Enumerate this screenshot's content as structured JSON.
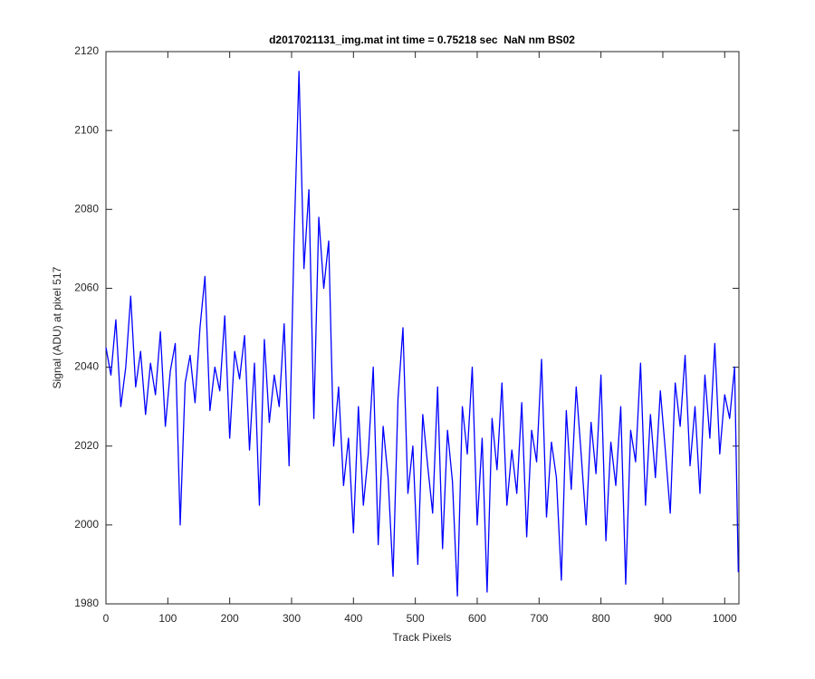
{
  "chart_data": {
    "type": "line",
    "title": "d2017021131_img.mat int time = 0.75218 sec  NaN nm BS02",
    "xlabel": "Track Pixels",
    "ylabel": "Signal (ADU) at pixel 517",
    "color": "#0000ff",
    "xlim": [
      0,
      1023
    ],
    "ylim": [
      1980,
      2120
    ],
    "xticks": [
      0,
      100,
      200,
      300,
      400,
      500,
      600,
      700,
      800,
      900,
      1000
    ],
    "yticks": [
      1980,
      2000,
      2020,
      2040,
      2060,
      2080,
      2100,
      2120
    ],
    "x": [
      0,
      8,
      16,
      24,
      32,
      40,
      48,
      56,
      64,
      72,
      80,
      88,
      96,
      104,
      112,
      120,
      128,
      136,
      144,
      152,
      160,
      168,
      176,
      184,
      192,
      200,
      208,
      216,
      224,
      232,
      240,
      248,
      256,
      264,
      272,
      280,
      288,
      296,
      304,
      312,
      320,
      328,
      336,
      344,
      352,
      360,
      368,
      376,
      384,
      392,
      400,
      408,
      416,
      424,
      432,
      440,
      448,
      456,
      464,
      472,
      480,
      488,
      496,
      504,
      512,
      520,
      528,
      536,
      544,
      552,
      560,
      568,
      576,
      584,
      592,
      600,
      608,
      616,
      624,
      632,
      640,
      648,
      656,
      664,
      672,
      680,
      688,
      696,
      704,
      712,
      720,
      728,
      736,
      744,
      752,
      760,
      768,
      776,
      784,
      792,
      800,
      808,
      816,
      824,
      832,
      840,
      848,
      856,
      864,
      872,
      880,
      888,
      896,
      904,
      912,
      920,
      928,
      936,
      944,
      952,
      960,
      968,
      976,
      984,
      992,
      1000,
      1008,
      1016,
      1022
    ],
    "values": [
      2045,
      2038,
      2052,
      2030,
      2040,
      2058,
      2035,
      2044,
      2028,
      2041,
      2033,
      2049,
      2025,
      2039,
      2046,
      2000,
      2036,
      2043,
      2031,
      2050,
      2063,
      2029,
      2040,
      2034,
      2053,
      2022,
      2044,
      2037,
      2048,
      2019,
      2041,
      2005,
      2047,
      2026,
      2038,
      2030,
      2051,
      2015,
      2072,
      2115,
      2065,
      2085,
      2027,
      2078,
      2060,
      2072,
      2020,
      2035,
      2010,
      2022,
      1998,
      2030,
      2005,
      2018,
      2040,
      1995,
      2025,
      2012,
      1987,
      2032,
      2050,
      2008,
      2020,
      1990,
      2028,
      2015,
      2003,
      2035,
      1994,
      2024,
      2011,
      1982,
      2030,
      2018,
      2040,
      2000,
      2022,
      1983,
      2027,
      2014,
      2036,
      2005,
      2019,
      2008,
      2031,
      1997,
      2024,
      2016,
      2042,
      2002,
      2021,
      2012,
      1986,
      2029,
      2009,
      2035,
      2018,
      2000,
      2026,
      2013,
      2038,
      1996,
      2021,
      2010,
      2030,
      1985,
      2024,
      2016,
      2041,
      2005,
      2028,
      2012,
      2034,
      2019,
      2003,
      2036,
      2025,
      2043,
      2015,
      2030,
      2008,
      2038,
      2022,
      2046,
      2018,
      2033,
      2027,
      2040,
      1988
    ]
  }
}
